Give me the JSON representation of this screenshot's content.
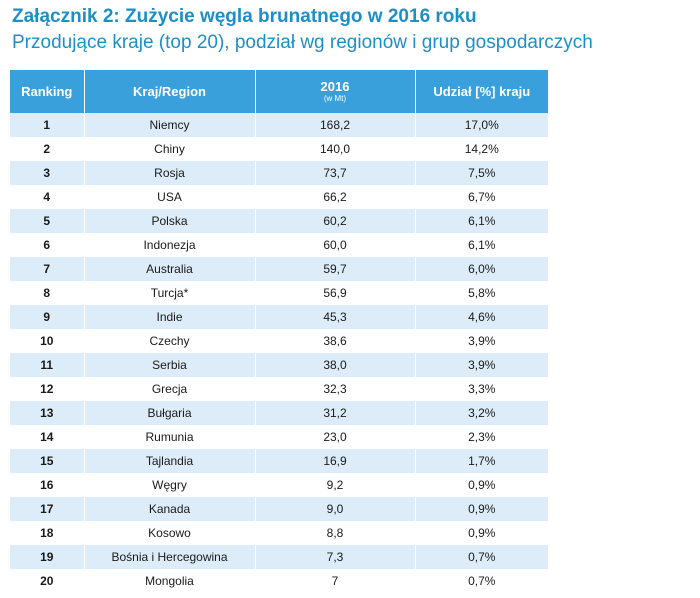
{
  "title": "Załącznik 2: Zużycie węgla brunatnego w 2016 roku",
  "subtitle": "Przodujące kraje (top 20), podział wg regionów i grup gospodarczych",
  "colors": {
    "title": "#1d8fc7",
    "header_bg": "#3aa0dc",
    "row_stripe": "#dcecf8"
  },
  "table": {
    "headers": {
      "ranking": "Ranking",
      "country": "Kraj/Region",
      "year": "2016",
      "unit": "(w Mt)",
      "share": "Udział [%] kraju"
    },
    "rows": [
      {
        "rank": "1",
        "country": "Niemcy",
        "value": "168,2",
        "share": "17,0%"
      },
      {
        "rank": "2",
        "country": "Chiny",
        "value": "140,0",
        "share": "14,2%"
      },
      {
        "rank": "3",
        "country": "Rosja",
        "value": "73,7",
        "share": "7,5%"
      },
      {
        "rank": "4",
        "country": "USA",
        "value": "66,2",
        "share": "6,7%"
      },
      {
        "rank": "5",
        "country": "Polska",
        "value": "60,2",
        "share": "6,1%"
      },
      {
        "rank": "6",
        "country": "Indonezja",
        "value": "60,0",
        "share": "6,1%"
      },
      {
        "rank": "7",
        "country": "Australia",
        "value": "59,7",
        "share": "6,0%"
      },
      {
        "rank": "8",
        "country": "Turcja*",
        "value": "56,9",
        "share": "5,8%"
      },
      {
        "rank": "9",
        "country": "Indie",
        "value": "45,3",
        "share": "4,6%"
      },
      {
        "rank": "10",
        "country": "Czechy",
        "value": "38,6",
        "share": "3,9%"
      },
      {
        "rank": "11",
        "country": "Serbia",
        "value": "38,0",
        "share": "3,9%"
      },
      {
        "rank": "12",
        "country": "Grecja",
        "value": "32,3",
        "share": "3,3%"
      },
      {
        "rank": "13",
        "country": "Bułgaria",
        "value": "31,2",
        "share": "3,2%"
      },
      {
        "rank": "14",
        "country": "Rumunia",
        "value": "23,0",
        "share": "2,3%"
      },
      {
        "rank": "15",
        "country": "Tajlandia",
        "value": "16,9",
        "share": "1,7%"
      },
      {
        "rank": "16",
        "country": "Węgry",
        "value": "9,2",
        "share": "0,9%"
      },
      {
        "rank": "17",
        "country": "Kanada",
        "value": "9,0",
        "share": "0,9%"
      },
      {
        "rank": "18",
        "country": "Kosowo",
        "value": "8,8",
        "share": "0,9%"
      },
      {
        "rank": "19",
        "country": "Bośnia i Hercegowina",
        "value": "7,3",
        "share": "0,7%"
      },
      {
        "rank": "20",
        "country": "Mongolia",
        "value": "7",
        "share": "0,7%"
      }
    ]
  }
}
